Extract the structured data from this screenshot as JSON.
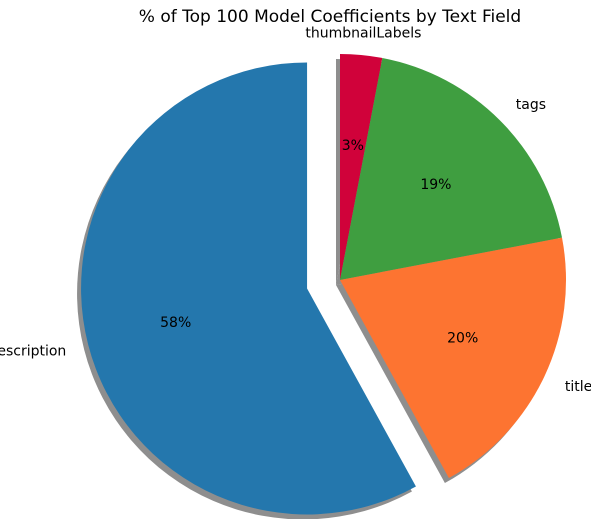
{
  "chart_data": {
    "type": "pie",
    "title": "% of Top 100 Model Coefficients by Text Field",
    "slices": [
      {
        "label": "thumbnailLabels",
        "value": 3,
        "pct_label": "3%",
        "color": "#d0023a"
      },
      {
        "label": "tags",
        "value": 19,
        "pct_label": "19%",
        "color": "#3f9e40"
      },
      {
        "label": "title",
        "value": 20,
        "pct_label": "20%",
        "color": "#fd7431"
      },
      {
        "label": "description",
        "value": 58,
        "pct_label": "58%",
        "color": "#2477ad",
        "exploded": true
      }
    ],
    "start_angle": "top",
    "direction": "clockwise",
    "shadow": true
  }
}
